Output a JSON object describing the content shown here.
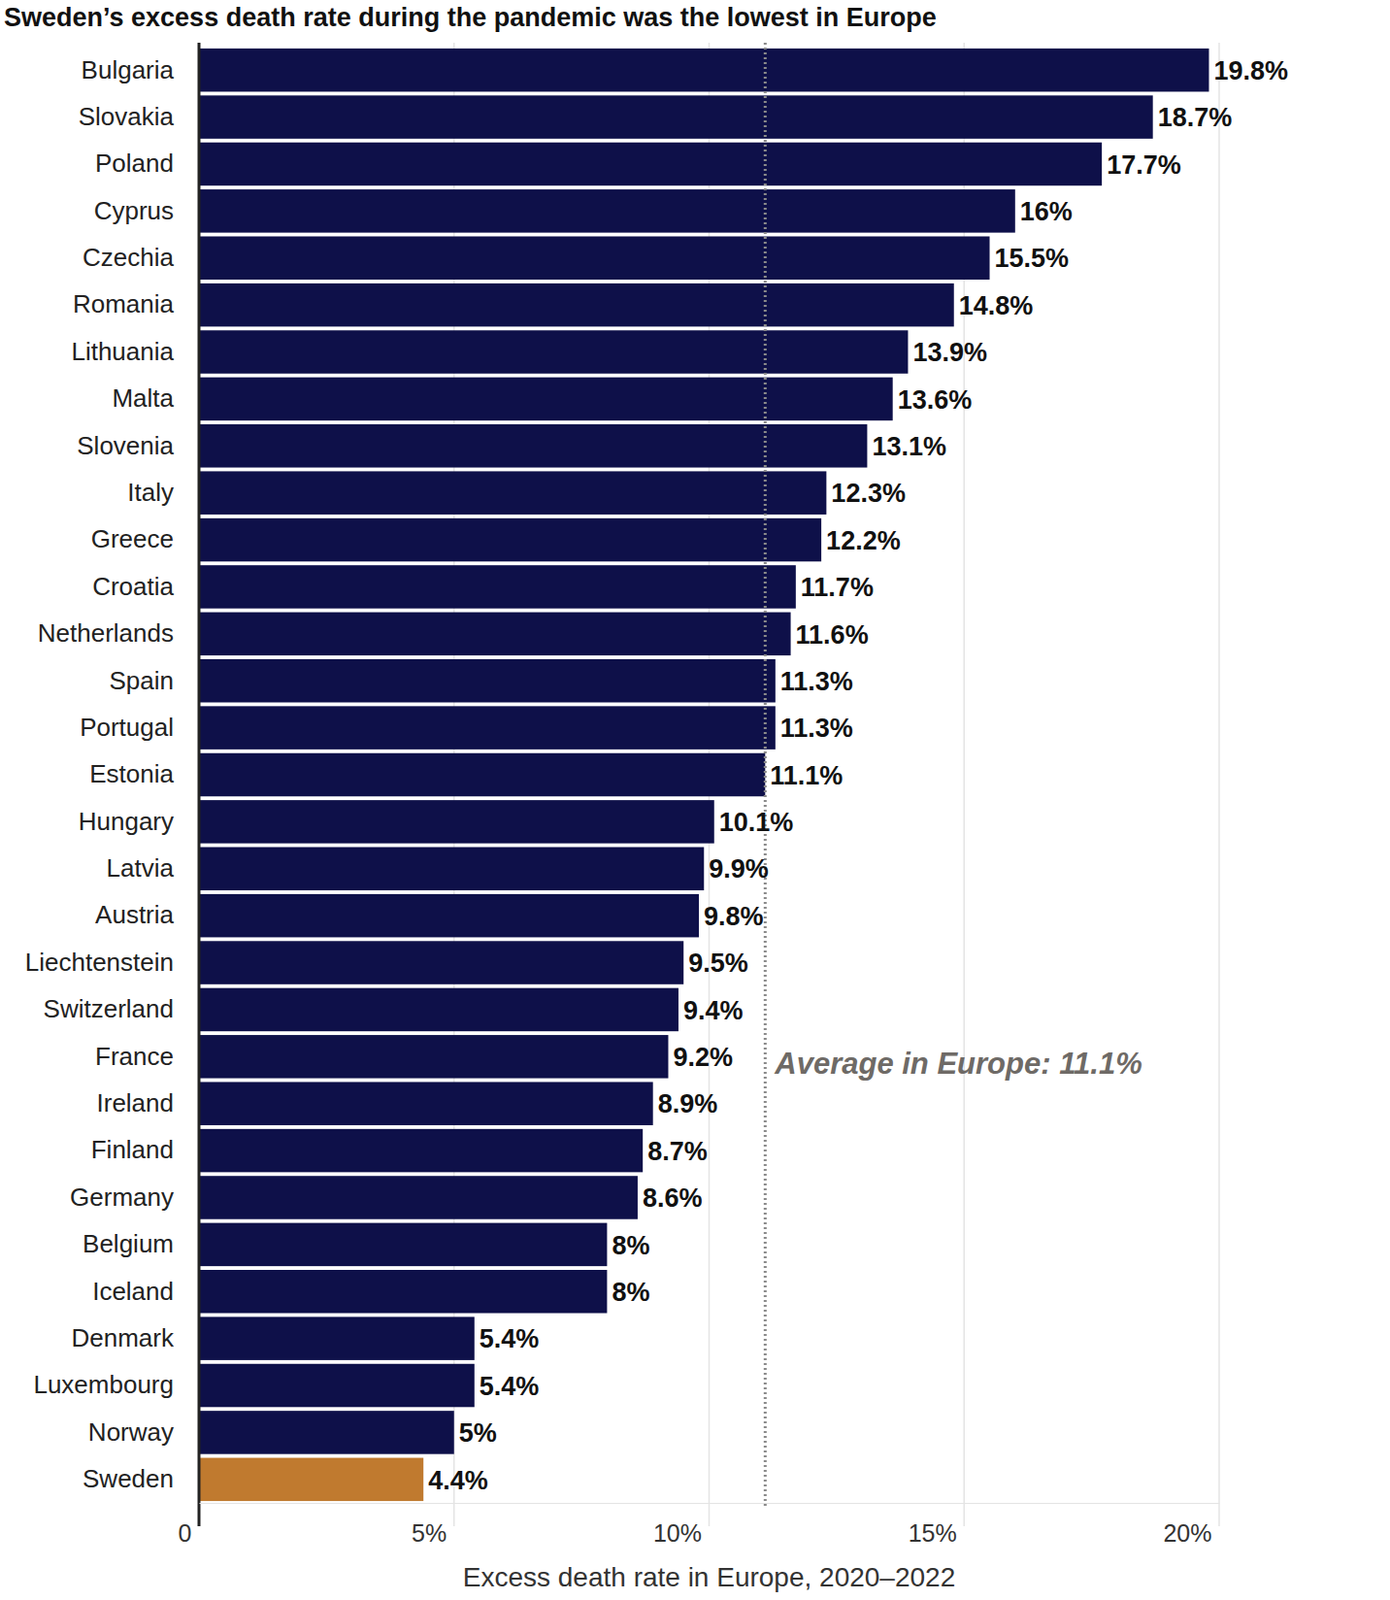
{
  "chart_data": {
    "type": "bar",
    "title": "Sweden’s excess death rate during the pandemic was the lowest in Europe",
    "x_label": "Excess death rate in Europe, 2020–2022",
    "orientation": "horizontal",
    "categories": [
      "Bulgaria",
      "Slovakia",
      "Poland",
      "Cyprus",
      "Czechia",
      "Romania",
      "Lithuania",
      "Malta",
      "Slovenia",
      "Italy",
      "Greece",
      "Croatia",
      "Netherlands",
      "Spain",
      "Portugal",
      "Estonia",
      "Hungary",
      "Latvia",
      "Austria",
      "Liechtenstein",
      "Switzerland",
      "France",
      "Ireland",
      "Finland",
      "Germany",
      "Belgium",
      "Iceland",
      "Denmark",
      "Luxembourg",
      "Norway",
      "Sweden"
    ],
    "values": [
      19.8,
      18.7,
      17.7,
      16,
      15.5,
      14.8,
      13.9,
      13.6,
      13.1,
      12.3,
      12.2,
      11.7,
      11.6,
      11.3,
      11.3,
      11.1,
      10.1,
      9.9,
      9.8,
      9.5,
      9.4,
      9.2,
      8.9,
      8.7,
      8.6,
      8,
      8,
      5.4,
      5.4,
      5,
      4.4
    ],
    "value_labels": [
      "19.8%",
      "18.7%",
      "17.7%",
      "16%",
      "15.5%",
      "14.8%",
      "13.9%",
      "13.6%",
      "13.1%",
      "12.3%",
      "12.2%",
      "11.7%",
      "11.6%",
      "11.3%",
      "11.3%",
      "11.1%",
      "10.1%",
      "9.9%",
      "9.8%",
      "9.5%",
      "9.4%",
      "9.2%",
      "8.9%",
      "8.7%",
      "8.6%",
      "8%",
      "8%",
      "5.4%",
      "5.4%",
      "5%",
      "4.4%"
    ],
    "colors": [
      "#0e1049",
      "#0e1049",
      "#0e1049",
      "#0e1049",
      "#0e1049",
      "#0e1049",
      "#0e1049",
      "#0e1049",
      "#0e1049",
      "#0e1049",
      "#0e1049",
      "#0e1049",
      "#0e1049",
      "#0e1049",
      "#0e1049",
      "#0e1049",
      "#0e1049",
      "#0e1049",
      "#0e1049",
      "#0e1049",
      "#0e1049",
      "#0e1049",
      "#0e1049",
      "#0e1049",
      "#0e1049",
      "#0e1049",
      "#0e1049",
      "#0e1049",
      "#0e1049",
      "#0e1049",
      "#c07a2f"
    ],
    "xlim": [
      0,
      20
    ],
    "xticks": [
      0,
      {
        "value": 5,
        "label": "5%"
      },
      {
        "value": 10,
        "label": "10%"
      },
      {
        "value": 15,
        "label": "15%"
      },
      {
        "value": 20,
        "label": "20%"
      }
    ],
    "average": 11.1,
    "annotation": "Average in Europe: 11.1%",
    "grid": true,
    "data_labels": true
  }
}
